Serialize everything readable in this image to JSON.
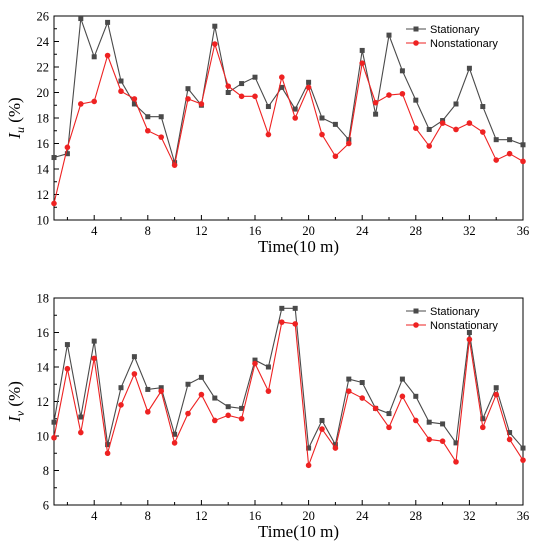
{
  "colors": {
    "stationary": "#4a4a4a",
    "nonstationary": "#ee2222"
  },
  "chart_data": [
    {
      "type": "line",
      "ylabel_main": "I",
      "ylabel_sub": "u",
      "ylabel_unit": " (%)",
      "xlabel": "Time(10 m)",
      "xlim": [
        1,
        36
      ],
      "ylim": [
        10,
        26
      ],
      "xticks": [
        4,
        8,
        12,
        16,
        20,
        24,
        28,
        32,
        36
      ],
      "yticks": [
        10,
        12,
        14,
        16,
        18,
        20,
        22,
        24,
        26
      ],
      "legend_position": "top-right",
      "grid": false,
      "x": [
        1,
        2,
        3,
        4,
        5,
        6,
        7,
        8,
        9,
        10,
        11,
        12,
        13,
        14,
        15,
        16,
        17,
        18,
        19,
        20,
        21,
        22,
        23,
        24,
        25,
        26,
        27,
        28,
        29,
        30,
        31,
        32,
        33,
        34,
        35,
        36
      ],
      "series": [
        {
          "name": "Stationary",
          "values": [
            14.9,
            15.2,
            25.8,
            22.8,
            25.5,
            20.9,
            19.1,
            18.1,
            18.1,
            14.5,
            20.3,
            19.0,
            25.2,
            20.0,
            20.7,
            21.2,
            18.9,
            20.4,
            18.7,
            20.8,
            18.0,
            17.5,
            16.3,
            23.3,
            18.3,
            24.5,
            21.7,
            19.4,
            17.1,
            17.8,
            19.1,
            21.9,
            18.9,
            16.3,
            16.3,
            15.9
          ]
        },
        {
          "name": "Nonstationary",
          "values": [
            11.3,
            15.7,
            19.1,
            19.3,
            22.9,
            20.1,
            19.5,
            17.0,
            16.5,
            14.3,
            19.5,
            19.1,
            23.8,
            20.5,
            19.7,
            19.7,
            16.7,
            21.2,
            18.0,
            20.4,
            16.7,
            15.0,
            16.0,
            22.3,
            19.2,
            19.8,
            19.9,
            17.2,
            15.8,
            17.6,
            17.1,
            17.6,
            16.9,
            14.7,
            15.2,
            14.6
          ]
        }
      ]
    },
    {
      "type": "line",
      "ylabel_main": "I",
      "ylabel_sub": "v",
      "ylabel_unit": " (%)",
      "xlabel": "Time(10 m)",
      "xlim": [
        1,
        36
      ],
      "ylim": [
        6,
        18
      ],
      "xticks": [
        4,
        8,
        12,
        16,
        20,
        24,
        28,
        32,
        36
      ],
      "yticks": [
        6,
        8,
        10,
        12,
        14,
        16,
        18
      ],
      "legend_position": "top-right",
      "grid": false,
      "x": [
        1,
        2,
        3,
        4,
        5,
        6,
        7,
        8,
        9,
        10,
        11,
        12,
        13,
        14,
        15,
        16,
        17,
        18,
        19,
        20,
        21,
        22,
        23,
        24,
        25,
        26,
        27,
        28,
        29,
        30,
        31,
        32,
        33,
        34,
        35,
        36
      ],
      "series": [
        {
          "name": "Stationary",
          "values": [
            10.8,
            15.3,
            11.1,
            15.5,
            9.5,
            12.8,
            14.6,
            12.7,
            12.8,
            10.1,
            13.0,
            13.4,
            12.2,
            11.7,
            11.6,
            14.4,
            14.0,
            17.4,
            17.4,
            9.3,
            10.9,
            9.5,
            13.3,
            13.1,
            11.6,
            11.3,
            13.3,
            12.3,
            10.8,
            10.7,
            9.6,
            16.0,
            11.0,
            12.8,
            10.2,
            9.3
          ]
        },
        {
          "name": "Nonstationary",
          "values": [
            9.9,
            13.9,
            10.2,
            14.5,
            9.0,
            11.8,
            13.6,
            11.4,
            12.6,
            9.6,
            11.3,
            12.4,
            10.9,
            11.2,
            11.0,
            14.2,
            12.6,
            16.6,
            16.5,
            8.3,
            10.4,
            9.3,
            12.6,
            12.2,
            11.6,
            10.5,
            12.3,
            10.9,
            9.8,
            9.7,
            8.5,
            15.6,
            10.5,
            12.4,
            9.8,
            8.6
          ]
        }
      ]
    }
  ]
}
